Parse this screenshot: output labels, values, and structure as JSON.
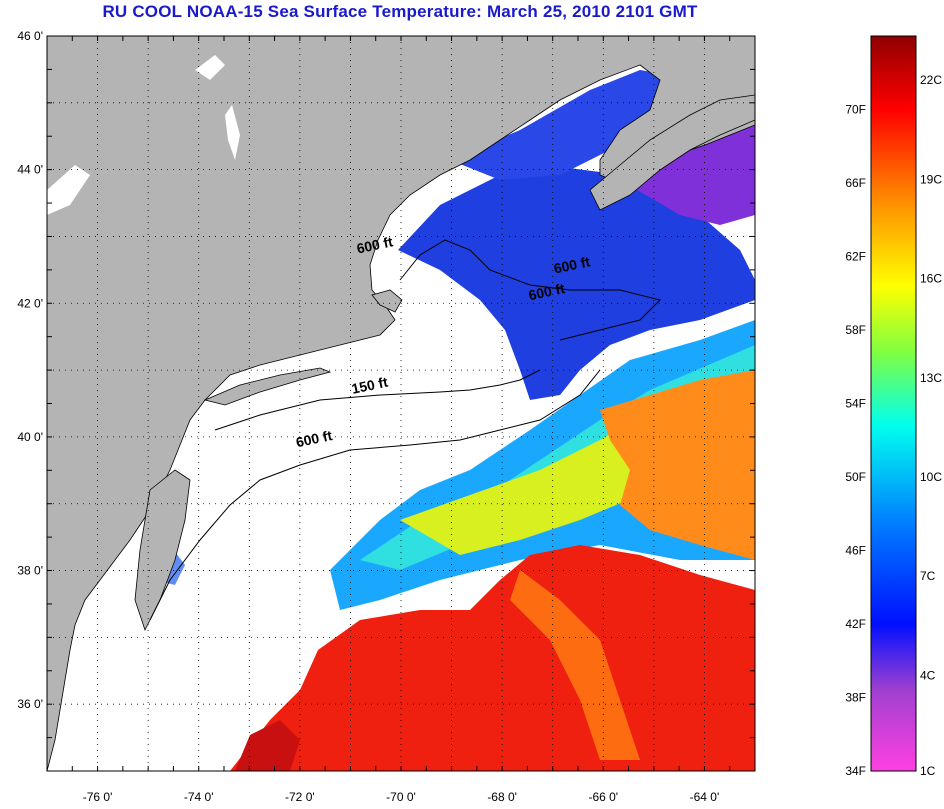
{
  "title": "RU COOL  NOAA-15  Sea Surface Temperature:  March 25, 2010 2101 GMT",
  "map": {
    "lat_range": [
      35,
      46
    ],
    "lon_range": [
      -77,
      -63
    ],
    "lat_ticks": [
      "46 0'",
      "44 0'",
      "42 0'",
      "40 0'",
      "38 0'",
      "36 0'"
    ],
    "lon_ticks": [
      "-76 0'",
      "-74 0'",
      "-72 0'",
      "-70 0'",
      "-68 0'",
      "-66 0'",
      "-64 0'"
    ],
    "contour_labels": [
      {
        "text": "600 ft",
        "lon": -70.5,
        "lat": 42.8
      },
      {
        "text": "600 ft",
        "lon": -66.6,
        "lat": 42.5
      },
      {
        "text": "600 ft",
        "lon": -67.1,
        "lat": 42.1
      },
      {
        "text": "150 ft",
        "lon": -70.6,
        "lat": 40.7
      },
      {
        "text": "600 ft",
        "lon": -71.7,
        "lat": 39.9
      }
    ],
    "colors": {
      "land": "#b4b4b4",
      "cloud": "#ffffff"
    }
  },
  "colorbar": {
    "f_labels": [
      "70F",
      "66F",
      "62F",
      "58F",
      "54F",
      "50F",
      "46F",
      "42F",
      "38F",
      "34F"
    ],
    "c_labels": [
      "22C",
      "19C",
      "16C",
      "13C",
      "10C",
      "7C",
      "4C",
      "1C"
    ],
    "stops": [
      "#ff40e0",
      "#a040d0",
      "#0010ff",
      "#0080ff",
      "#00ffee",
      "#80ff40",
      "#ffff00",
      "#ff8800",
      "#ff0000",
      "#900000"
    ]
  }
}
